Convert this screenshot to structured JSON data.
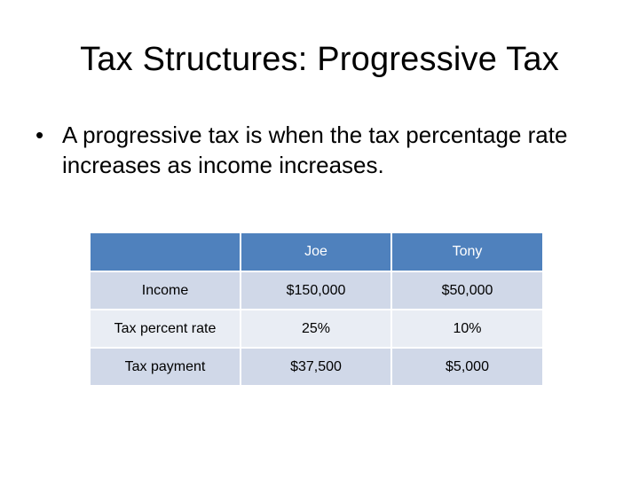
{
  "slide": {
    "title": "Tax Structures: Progressive Tax",
    "bullet_symbol": "•",
    "bullet_text": "A progressive tax is when the tax percentage rate increases as income increases."
  },
  "table": {
    "headers": [
      "",
      "Joe",
      "Tony"
    ],
    "rows": [
      {
        "label": "Income",
        "joe": "$150,000",
        "tony": "$50,000"
      },
      {
        "label": "Tax percent rate",
        "joe": "25%",
        "tony": "10%"
      },
      {
        "label": "Tax payment",
        "joe": "$37,500",
        "tony": "$5,000"
      }
    ],
    "colors": {
      "header_bg": "#4f81bd",
      "row_odd_bg": "#d0d8e8",
      "row_even_bg": "#e9edf4"
    }
  }
}
